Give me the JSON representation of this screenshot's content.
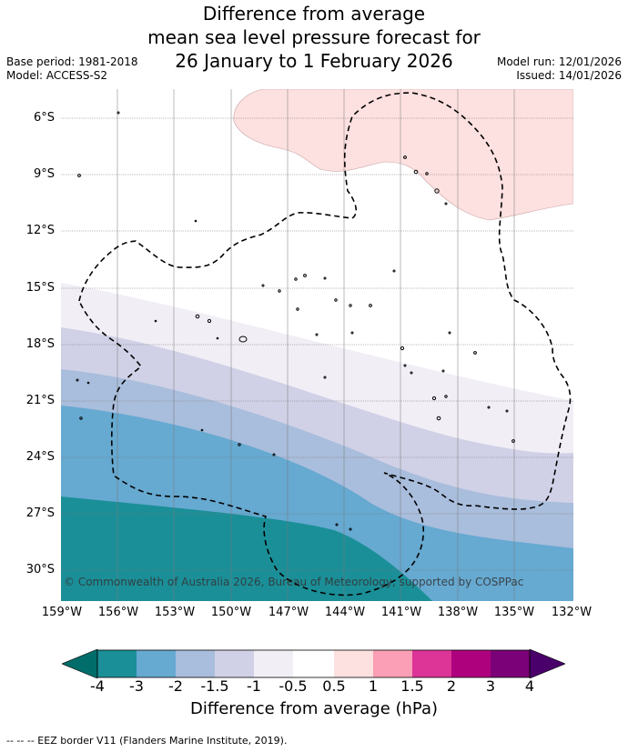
{
  "title": {
    "line1": "Difference from average",
    "line2": "mean sea level pressure forecast for",
    "line3": "26 January to 1 February 2026"
  },
  "meta": {
    "base_period": "Base period: 1981-2018",
    "model": "Model: ACCESS-S2",
    "model_run": "Model run: 12/01/2026",
    "issued": "Issued: 14/01/2026"
  },
  "axes": {
    "lat_labels": [
      "6°S",
      "9°S",
      "12°S",
      "15°S",
      "18°S",
      "21°S",
      "24°S",
      "27°S",
      "30°S"
    ],
    "lon_labels": [
      "159°W",
      "156°W",
      "153°W",
      "150°W",
      "147°W",
      "144°W",
      "141°W",
      "138°W",
      "135°W",
      "132°W"
    ]
  },
  "copyright": "© Commonwealth of Australia 2026, Bureau of Meteorology, supported by COSPPac",
  "colorbar": {
    "title": "Difference from average (hPa)",
    "ticks": [
      "-4",
      "-3",
      "-2",
      "-1.5",
      "-1",
      "-0.5",
      "0.5",
      "1",
      "1.5",
      "2",
      "3",
      "4"
    ],
    "colors": [
      "#006d6a",
      "#1b8f98",
      "#66a9d1",
      "#a9bddc",
      "#d0d1e6",
      "#f1eef6",
      "#ffffff",
      "#fde0e0",
      "#fa9fb5",
      "#dd3497",
      "#ae017e",
      "#7a0177",
      "#49006a"
    ]
  },
  "footer": "--  --  -- EEZ border V11 (Flanders Marine Institute, 2019)."
}
